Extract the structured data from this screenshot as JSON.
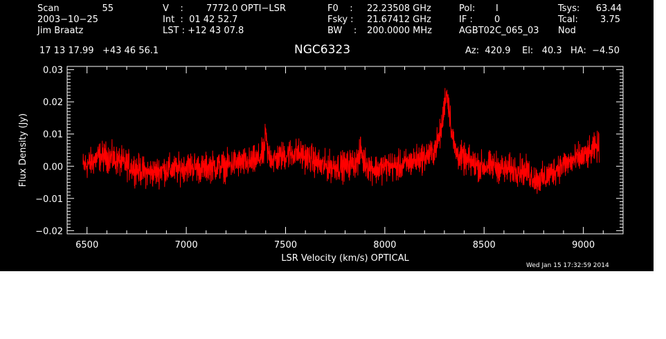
{
  "header": {
    "col1": [
      "Scan",
      "2003−10−25",
      "Jim Braatz"
    ],
    "scan_number": "55",
    "col2": [
      "V    :",
      "Int  :  01 42 52.7",
      "LST : +12 43 07.8"
    ],
    "velocity_value": "7772.0 OPTI−LSR",
    "col3": [
      "F0    :",
      "Fsky :",
      "BW    :"
    ],
    "col3_values": [
      "22.23508 GHz",
      "21.67412 GHz",
      "200.0000 MHz"
    ],
    "col4": [
      "Pol:",
      "IF :",
      "AGBT02C_065_03"
    ],
    "col4_values": [
      "I",
      "0",
      ""
    ],
    "col5": [
      "Tsys:",
      "Tcal:",
      "Nod"
    ],
    "col5_values": [
      "63.44",
      "3.75",
      ""
    ],
    "coordinates": "17 13 17.99   +43 46 56.1",
    "source": "NGC6323",
    "az_el_ha": "Az:  420.9    El:   40.3   HA:  −4.50",
    "footer_date": "Wed Jan 15 17:32:59 2014"
  },
  "colors": {
    "background": "#000000",
    "axes": "#ffffff",
    "spectrum": "#ff0000"
  },
  "chart_data": {
    "type": "line",
    "xlabel": "LSR Velocity (km/s) OPTICAL",
    "ylabel": "Flux Density (Jy)",
    "xlim": [
      6400,
      9200
    ],
    "ylim": [
      -0.021,
      0.031
    ],
    "x_ticks": [
      6500,
      7000,
      7500,
      8000,
      8500,
      9000
    ],
    "y_ticks": [
      -0.02,
      -0.01,
      0.0,
      0.01,
      0.02,
      0.03
    ],
    "x_tick_labels": [
      "6500",
      "7000",
      "7500",
      "8000",
      "8500",
      "9000"
    ],
    "y_tick_labels": [
      "−0.02",
      "−0.01",
      "0.00",
      "0.01",
      "0.02",
      "0.03"
    ],
    "grid": false,
    "series": [
      {
        "x": [
          6480,
          6520,
          6560,
          6600,
          6640,
          6680,
          6720,
          6760,
          6800,
          6840,
          6880,
          6920,
          6960,
          7000,
          7040,
          7080,
          7120,
          7160,
          7200,
          7240,
          7280,
          7320,
          7360,
          7390,
          7400,
          7410,
          7440,
          7480,
          7520,
          7560,
          7600,
          7640,
          7680,
          7720,
          7760,
          7800,
          7840,
          7870,
          7880,
          7890,
          7920,
          7960,
          8000,
          8040,
          8080,
          8120,
          8160,
          8200,
          8240,
          8270,
          8290,
          8300,
          8310,
          8320,
          8330,
          8340,
          8360,
          8400,
          8440,
          8480,
          8520,
          8560,
          8600,
          8640,
          8680,
          8720,
          8760,
          8800,
          8840,
          8880,
          8920,
          8960,
          9000,
          9040,
          9060,
          9080
        ],
        "y": [
          0.0,
          0.001,
          0.003,
          0.003,
          0.002,
          0.001,
          0.0,
          -0.001,
          -0.002,
          -0.002,
          -0.001,
          -0.001,
          -0.001,
          0.0,
          0.0,
          -0.001,
          0.0,
          0.0,
          0.0,
          0.001,
          0.001,
          0.001,
          0.002,
          0.004,
          0.01,
          0.004,
          0.002,
          0.003,
          0.004,
          0.004,
          0.003,
          0.002,
          0.0,
          0.0,
          0.0,
          0.0,
          0.001,
          0.002,
          0.006,
          0.002,
          0.0,
          -0.001,
          0.0,
          0.0,
          0.0,
          0.001,
          0.002,
          0.003,
          0.004,
          0.008,
          0.013,
          0.02,
          0.023,
          0.02,
          0.015,
          0.009,
          0.004,
          0.002,
          0.001,
          0.0,
          0.0,
          0.0,
          -0.001,
          -0.001,
          -0.001,
          -0.002,
          -0.004,
          -0.004,
          -0.002,
          0.0,
          0.001,
          0.002,
          0.003,
          0.004,
          0.006,
          0.006
        ]
      }
    ]
  }
}
